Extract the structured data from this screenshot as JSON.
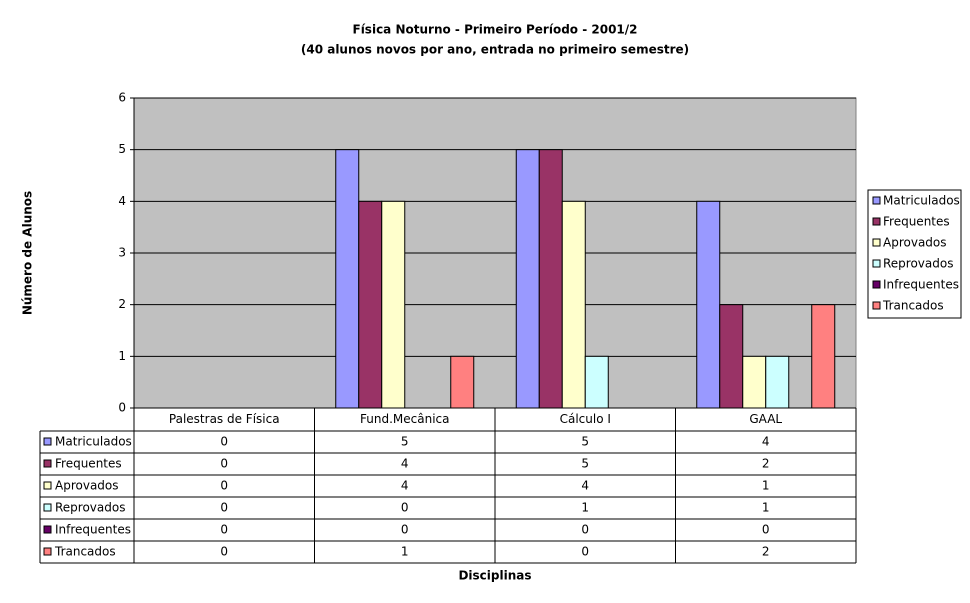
{
  "chart_data": {
    "type": "bar",
    "title": "Física Noturno - Primeiro Período - 2001/2",
    "subtitle": "(40 alunos novos por ano, entrada no primeiro semestre)",
    "y_label": "Número de Alunos",
    "x_label": "Disciplinas",
    "categories": [
      "Palestras de Física",
      "Fund.Mecânica",
      "Cálculo I",
      "GAAL"
    ],
    "series": [
      {
        "name": "Matriculados",
        "color": "#9999ff",
        "values": [
          0,
          5,
          5,
          4
        ]
      },
      {
        "name": "Frequentes",
        "color": "#993366",
        "values": [
          0,
          4,
          5,
          2
        ]
      },
      {
        "name": "Aprovados",
        "color": "#ffffcc",
        "values": [
          0,
          4,
          4,
          1
        ]
      },
      {
        "name": "Reprovados",
        "color": "#ccffff",
        "values": [
          0,
          0,
          1,
          1
        ]
      },
      {
        "name": "Infrequentes",
        "color": "#660066",
        "values": [
          0,
          0,
          0,
          0
        ]
      },
      {
        "name": "Trancados",
        "color": "#ff8080",
        "values": [
          0,
          1,
          0,
          2
        ]
      }
    ],
    "ylim": [
      0,
      6
    ],
    "yticks": [
      0,
      1,
      2,
      3,
      4,
      5,
      6
    ],
    "grid": true,
    "legend": "right",
    "data_table": true,
    "plot_background": "#c0c0c0"
  }
}
